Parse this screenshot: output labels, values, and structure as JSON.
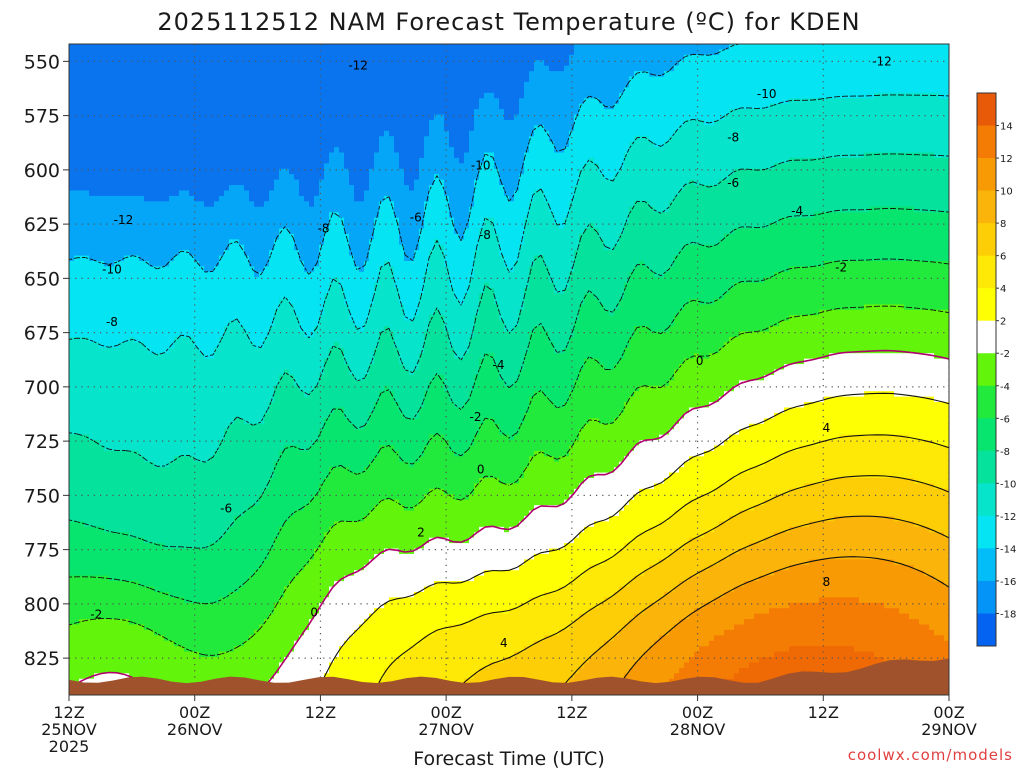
{
  "chart_data": {
    "type": "heatmap",
    "title": "2025112512 NAM Forecast Temperature (ºC) for KDEN",
    "xlabel": "Forecast Time (UTC)",
    "ylabel": "",
    "y_axis": {
      "ticks": [
        "550",
        "575",
        "600",
        "625",
        "650",
        "675",
        "700",
        "725",
        "750",
        "775",
        "800",
        "825"
      ],
      "range_hPa": [
        542,
        842
      ],
      "inverted": true
    },
    "x_axis": {
      "ticks": [
        {
          "line1": "12Z",
          "line2": "25NOV",
          "line3": "2025",
          "hours": 0
        },
        {
          "line1": "00Z",
          "line2": "26NOV",
          "line3": "",
          "hours": 12
        },
        {
          "line1": "12Z",
          "line2": "",
          "line3": "",
          "hours": 24
        },
        {
          "line1": "00Z",
          "line2": "27NOV",
          "line3": "",
          "hours": 36
        },
        {
          "line1": "12Z",
          "line2": "",
          "line3": "",
          "hours": 48
        },
        {
          "line1": "00Z",
          "line2": "28NOV",
          "line3": "",
          "hours": 60
        },
        {
          "line1": "12Z",
          "line2": "",
          "line3": "",
          "hours": 72
        },
        {
          "line1": "00Z",
          "line2": "29NOV",
          "line3": "",
          "hours": 84
        }
      ],
      "range_hours": [
        0,
        84
      ]
    },
    "grid": true,
    "colorbar": {
      "position": "right",
      "labels": [
        "14",
        "12",
        "10",
        "8",
        "6",
        "4",
        "2",
        "-2",
        "-4",
        "-6",
        "-8",
        "-10",
        "-12",
        "-14",
        "-16",
        "-18"
      ],
      "colors": [
        "#e85a08",
        "#f47c04",
        "#f79a04",
        "#fbb50a",
        "#fdce06",
        "#fee805",
        "#ffff04",
        "#ffffff",
        "#62f40a",
        "#22ea3c",
        "#07e56e",
        "#05e29c",
        "#06e4cb",
        "#04e4f3",
        "#03bdf9",
        "#0494f7",
        "#0563f2"
      ]
    },
    "contour_levels": [
      -12,
      -10,
      -8,
      -6,
      -4,
      -2,
      0,
      2,
      4,
      6,
      8,
      10
    ],
    "contour_labels": [
      {
        "text": "-12",
        "h": 27.6,
        "p": 552
      },
      {
        "text": "-12",
        "h": 77.6,
        "p": 550
      },
      {
        "text": "-10",
        "h": 66.6,
        "p": 565
      },
      {
        "text": "-8",
        "h": 63.4,
        "p": 585
      },
      {
        "text": "-10",
        "h": 39.3,
        "p": 598
      },
      {
        "text": "-6",
        "h": 63.4,
        "p": 606
      },
      {
        "text": "-12",
        "h": 5.2,
        "p": 623
      },
      {
        "text": "-8",
        "h": 24.3,
        "p": 627
      },
      {
        "text": "-6",
        "h": 33.1,
        "p": 622
      },
      {
        "text": "-8",
        "h": 39.7,
        "p": 630
      },
      {
        "text": "-4",
        "h": 69.5,
        "p": 619
      },
      {
        "text": "-10",
        "h": 4.1,
        "p": 646
      },
      {
        "text": "-2",
        "h": 73.7,
        "p": 645
      },
      {
        "text": "-8",
        "h": 4.1,
        "p": 670
      },
      {
        "text": "-4",
        "h": 41.0,
        "p": 690
      },
      {
        "text": "0",
        "h": 60.2,
        "p": 688
      },
      {
        "text": "-2",
        "h": 38.8,
        "p": 714
      },
      {
        "text": "4",
        "h": 72.3,
        "p": 719
      },
      {
        "text": "0",
        "h": 39.3,
        "p": 738
      },
      {
        "text": "-6",
        "h": 15.0,
        "p": 756
      },
      {
        "text": "2",
        "h": 33.6,
        "p": 767
      },
      {
        "text": "8",
        "h": 72.3,
        "p": 790
      },
      {
        "text": "-2",
        "h": 2.6,
        "p": 805
      },
      {
        "text": "0",
        "h": 23.4,
        "p": 804
      },
      {
        "text": "4",
        "h": 41.5,
        "p": 818
      }
    ],
    "bands": [
      {
        "min": -14,
        "max": -12,
        "color": "#05a6f7"
      },
      {
        "min": -12,
        "max": -10,
        "color": "#04e4f3"
      },
      {
        "min": -10,
        "max": -8,
        "color": "#06e4cb"
      },
      {
        "min": -8,
        "max": -6,
        "color": "#05e29c"
      },
      {
        "min": -6,
        "max": -4,
        "color": "#07e56e"
      },
      {
        "min": -4,
        "max": -2,
        "color": "#22ea3c"
      },
      {
        "min": -2,
        "max": 0,
        "color": "#62f40a"
      },
      {
        "min": 0,
        "max": 2,
        "color": "#ffffff"
      },
      {
        "min": 2,
        "max": 4,
        "color": "#ffff04"
      },
      {
        "min": 4,
        "max": 6,
        "color": "#fee805"
      },
      {
        "min": 6,
        "max": 8,
        "color": "#fdce06"
      },
      {
        "min": 8,
        "max": 10,
        "color": "#fbb50a"
      },
      {
        "min": 10,
        "max": 12,
        "color": "#f79a04"
      },
      {
        "min": 12,
        "max": 14,
        "color": "#f47c04"
      }
    ],
    "terrain_color": "#a0522d"
  },
  "credit": "coolwx.com/models"
}
